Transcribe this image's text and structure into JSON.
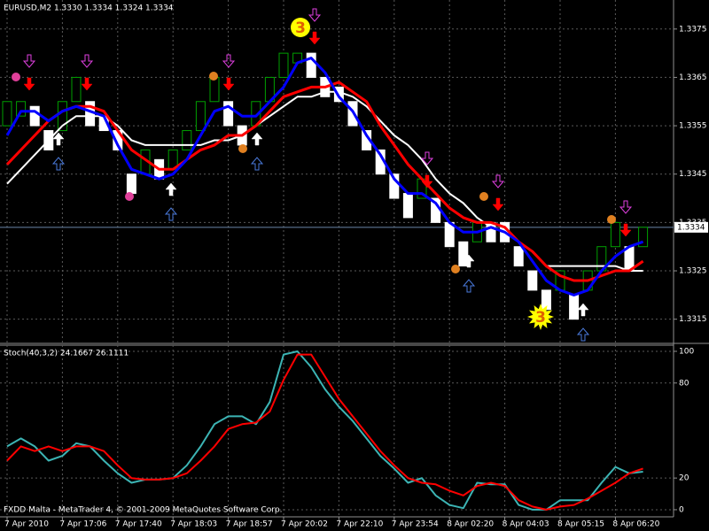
{
  "chart_data": [
    {
      "type": "candlestick",
      "title": "EURUSD,M2  1.3330 1.3334 1.3324 1.3334",
      "categories": [
        "7 Apr 2010",
        null,
        null,
        null,
        "7 Apr 17:06",
        null,
        null,
        null,
        "7 Apr 17:40",
        null,
        null,
        null,
        "7 Apr 18:03",
        null,
        null,
        null,
        "7 Apr 18:57",
        null,
        null,
        null,
        "7 Apr 20:02",
        null,
        null,
        null,
        "7 Apr 22:10",
        null,
        null,
        null,
        "7 Apr 23:54",
        null,
        null,
        null,
        "8 Apr 02:20",
        null,
        null,
        null,
        "8 Apr 04:03",
        null,
        null,
        null,
        "8 Apr 05:15",
        null,
        null,
        null,
        "8 Apr 06:20",
        null,
        null
      ],
      "open": [
        1.3355,
        1.3357,
        1.3359,
        1.3354,
        1.3354,
        1.336,
        1.336,
        1.3357,
        1.3354,
        1.3345,
        1.3345,
        1.3348,
        1.3346,
        1.335,
        1.3354,
        1.336,
        1.336,
        1.3355,
        1.3355,
        1.336,
        1.3365,
        1.3368,
        1.337,
        1.3365,
        1.3363,
        1.336,
        1.3354,
        1.335,
        1.3345,
        1.3341,
        1.334,
        1.334,
        1.3335,
        1.3331,
        1.3331,
        1.3335,
        1.3335,
        1.333,
        1.3325,
        1.3321,
        1.3321,
        1.332,
        1.3321,
        1.3325,
        1.333,
        1.333,
        1.333
      ],
      "close": [
        1.336,
        1.336,
        1.3355,
        1.335,
        1.336,
        1.3365,
        1.3355,
        1.3354,
        1.335,
        1.3341,
        1.335,
        1.3344,
        1.335,
        1.3354,
        1.336,
        1.3365,
        1.3355,
        1.3351,
        1.336,
        1.3365,
        1.337,
        1.337,
        1.3365,
        1.3361,
        1.336,
        1.3355,
        1.335,
        1.3345,
        1.334,
        1.3336,
        1.3344,
        1.3335,
        1.333,
        1.3326,
        1.3335,
        1.3331,
        1.3331,
        1.3326,
        1.3321,
        1.3317,
        1.3325,
        1.3315,
        1.3325,
        1.333,
        1.3335,
        1.3325,
        1.3334
      ],
      "up_color": "#00a000",
      "down_color": "#ffffff",
      "series": [
        {
          "color": "#ffffff",
          "values": [
            1.3343,
            1.3346,
            1.3349,
            1.3352,
            1.3355,
            1.3357,
            1.3357,
            1.3357,
            1.3355,
            1.3352,
            1.3351,
            1.3351,
            1.3351,
            1.3351,
            1.3351,
            1.3352,
            1.3352,
            1.3353,
            1.3355,
            1.3357,
            1.3359,
            1.3361,
            1.3361,
            1.3362,
            1.3362,
            1.3361,
            1.3359,
            1.3356,
            1.3353,
            1.3351,
            1.3348,
            1.3344,
            1.3341,
            1.3339,
            1.3336,
            1.3334,
            1.3333,
            1.3331,
            1.3329,
            1.3326,
            1.3326,
            1.3326,
            1.3326,
            1.3326,
            1.3326,
            1.3325,
            1.3325
          ]
        },
        {
          "color": "#ff0000",
          "values": [
            1.3347,
            1.335,
            1.3353,
            1.3356,
            1.3358,
            1.3359,
            1.3359,
            1.3358,
            1.3354,
            1.335,
            1.3348,
            1.3346,
            1.3346,
            1.3348,
            1.335,
            1.3351,
            1.3353,
            1.3353,
            1.3355,
            1.3358,
            1.3361,
            1.3362,
            1.3363,
            1.3363,
            1.3364,
            1.3362,
            1.336,
            1.3355,
            1.3351,
            1.3347,
            1.3344,
            1.3341,
            1.3338,
            1.3336,
            1.3335,
            1.3335,
            1.3334,
            1.3331,
            1.3329,
            1.3326,
            1.3324,
            1.3323,
            1.3323,
            1.3324,
            1.3325,
            1.3325,
            1.3327
          ]
        },
        {
          "color": "#0000ff",
          "values": [
            1.3353,
            1.3358,
            1.3358,
            1.3356,
            1.3358,
            1.3359,
            1.3358,
            1.3357,
            1.3351,
            1.3346,
            1.3345,
            1.3344,
            1.3345,
            1.3348,
            1.3353,
            1.3358,
            1.3359,
            1.3357,
            1.3357,
            1.336,
            1.3363,
            1.3368,
            1.3369,
            1.3366,
            1.3361,
            1.3358,
            1.3353,
            1.3349,
            1.3344,
            1.3341,
            1.3341,
            1.3339,
            1.3335,
            1.3333,
            1.3333,
            1.3334,
            1.3333,
            1.3331,
            1.3327,
            1.3323,
            1.3321,
            1.332,
            1.3321,
            1.3325,
            1.3328,
            1.333,
            1.3331
          ]
        }
      ],
      "ylim": [
        1.331,
        1.3381
      ],
      "yticks": [
        1.3375,
        1.3365,
        1.3355,
        1.3345,
        1.3335,
        1.3325,
        1.3315
      ],
      "last_price": 1.3334,
      "annotations": [
        "3",
        "3"
      ],
      "grid": true
    },
    {
      "type": "line",
      "title": "Stoch(40,3,2) 24.1667 26.1111",
      "series": [
        {
          "color": "#3cb4b4",
          "values": [
            40,
            45,
            40,
            31,
            34,
            42,
            40,
            31,
            23,
            17,
            19,
            19,
            20,
            28,
            40,
            54,
            59,
            59,
            54,
            68,
            98,
            100,
            90,
            76,
            65,
            56,
            45,
            34,
            26,
            17,
            20,
            9,
            3,
            1,
            17,
            16,
            16,
            3,
            0,
            0,
            6,
            6,
            6,
            17,
            27,
            23,
            24
          ]
        },
        {
          "color": "#ff0000",
          "values": [
            31,
            40,
            37,
            40,
            37,
            40,
            40,
            37,
            28,
            20,
            19,
            19,
            20,
            23,
            31,
            40,
            51,
            54,
            55,
            62,
            82,
            98,
            98,
            84,
            70,
            59,
            48,
            37,
            28,
            20,
            17,
            16,
            12,
            9,
            15,
            17,
            15,
            6,
            2,
            0,
            2,
            3,
            7,
            12,
            17,
            23,
            26
          ]
        }
      ],
      "ylim": [
        -4.5,
        103.9
      ],
      "yticks": [
        100,
        80,
        20,
        0
      ],
      "grid": true
    }
  ],
  "footer": "FXDD Malta - MetaTrader 4, © 2001-2009 MetaQuotes Software Corp."
}
